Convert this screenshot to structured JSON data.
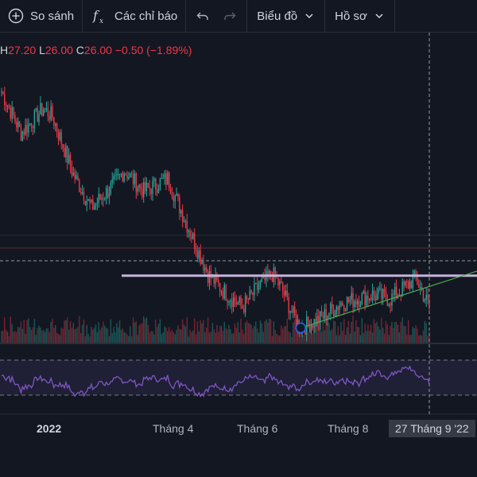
{
  "toolbar": {
    "compare_label": "So sánh",
    "indicators_label": "Các chỉ báo",
    "chart_label": "Biểu đồ",
    "profile_label": "Hồ sơ"
  },
  "ohlc": {
    "h_key": "H",
    "h_val": "27.20",
    "l_key": "L",
    "l_val": "26.00",
    "c_key": "C",
    "c_val": "26.00",
    "change": "−0.50 (−1.89%)"
  },
  "xaxis": {
    "year": "2022",
    "m4": "Tháng 4",
    "m6": "Tháng 6",
    "m8": "Tháng 8",
    "cursor_date": "27 Tháng 9 '22"
  },
  "colors": {
    "background": "#131722",
    "up": "#26a69a",
    "down": "#f23645",
    "rsi": "#7e57c2",
    "resistance": "#c5b3d9",
    "trendline": "#4caf50"
  },
  "chart_data": {
    "type": "candlestick",
    "start": "2021-12-15",
    "end": "2022-09-27",
    "anchors": [
      [
        "2021-12-15",
        52
      ],
      [
        "2021-12-28",
        47
      ],
      [
        "2022-01-12",
        50
      ],
      [
        "2022-01-18",
        49
      ],
      [
        "2022-02-01",
        42
      ],
      [
        "2022-02-13",
        38
      ],
      [
        "2022-03-01",
        41
      ],
      [
        "2022-03-07",
        42.5
      ],
      [
        "2022-03-20",
        40
      ],
      [
        "2022-04-05",
        41.5
      ],
      [
        "2022-04-18",
        36
      ],
      [
        "2022-05-02",
        30
      ],
      [
        "2022-05-12",
        28
      ],
      [
        "2022-05-25",
        26
      ],
      [
        "2022-06-05",
        28.5
      ],
      [
        "2022-06-14",
        30
      ],
      [
        "2022-06-21",
        28
      ],
      [
        "2022-06-28",
        25
      ],
      [
        "2022-07-03",
        23.5
      ],
      [
        "2022-07-15",
        24.5
      ],
      [
        "2022-07-30",
        26.5
      ],
      [
        "2022-08-20",
        27.5
      ],
      [
        "2022-09-01",
        27
      ],
      [
        "2022-09-18",
        29.5
      ],
      [
        "2022-09-27",
        26
      ]
    ],
    "resistance_level": 29.8,
    "trendline": [
      [
        "2022-07-03",
        23.5
      ],
      [
        "2022-09-27",
        28.5
      ]
    ],
    "rsi_levels": [
      70,
      30
    ],
    "xaxis_ticks": [
      "2022",
      "Tháng 4",
      "Tháng 6",
      "Tháng 8"
    ]
  }
}
